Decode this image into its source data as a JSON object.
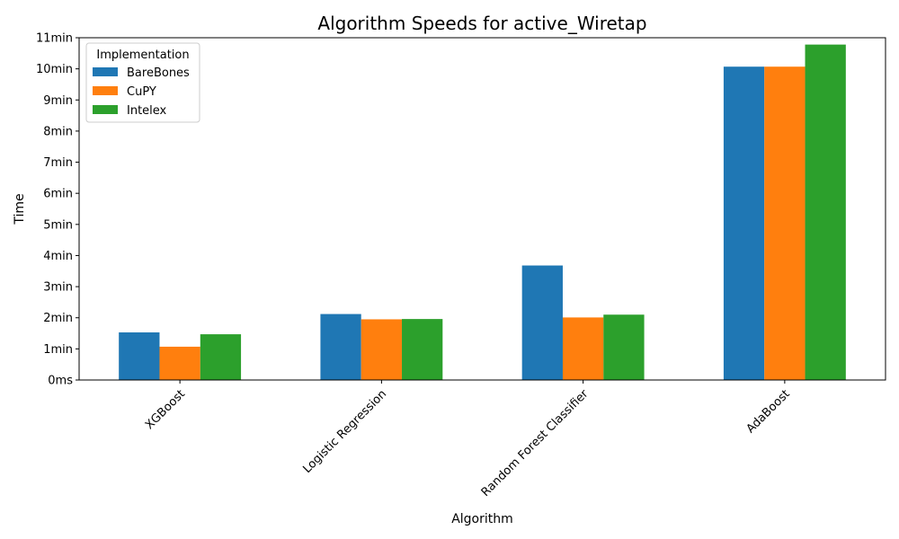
{
  "chart_data": {
    "type": "bar",
    "title": "Algorithm Speeds for active_Wiretap",
    "xlabel": "Algorithm",
    "ylabel": "Time",
    "categories": [
      "XGBoost",
      "Logistic Regression",
      "Random Forest Classifier",
      "AdaBoost"
    ],
    "series": [
      {
        "name": "BareBones",
        "color": "#1f77b4",
        "values": [
          1.53,
          2.12,
          3.68,
          10.07
        ]
      },
      {
        "name": "CuPY",
        "color": "#ff7f0e",
        "values": [
          1.07,
          1.95,
          2.01,
          10.07
        ]
      },
      {
        "name": "Intelex",
        "color": "#2ca02c",
        "values": [
          1.47,
          1.96,
          2.1,
          10.78
        ]
      }
    ],
    "ylim": [
      0,
      11
    ],
    "yticks": [
      0,
      1,
      2,
      3,
      4,
      5,
      6,
      7,
      8,
      9,
      10,
      11
    ],
    "ytick_labels": [
      "0ms",
      "1min",
      "2min",
      "3min",
      "4min",
      "5min",
      "6min",
      "7min",
      "8min",
      "9min",
      "10min",
      "11min"
    ],
    "legend_title": "Implementation",
    "legend_position": "top-left",
    "grid": false
  }
}
